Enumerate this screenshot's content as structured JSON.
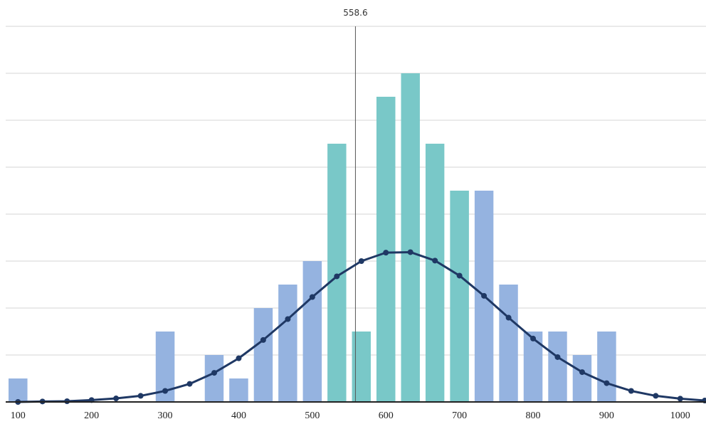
{
  "chart_data": {
    "type": "histogram",
    "bins": [
      83.3,
      116.7,
      150,
      183.3,
      216.7,
      250,
      283.3,
      316.7,
      350,
      383.3,
      416.7,
      450,
      483.3,
      516.7,
      550,
      583.3,
      616.7,
      650,
      683.3,
      716.7,
      750,
      783.3,
      816.7,
      850,
      883.3,
      916.7
    ],
    "values": [
      1,
      0,
      0,
      0,
      0,
      0,
      3,
      0,
      2,
      1,
      4,
      5,
      6,
      11,
      3,
      13,
      14,
      11,
      9,
      9,
      5,
      3,
      3,
      2,
      3
    ],
    "colors": [
      "#95b3e0",
      "#95b3e0",
      "#95b3e0",
      "#95b3e0",
      "#95b3e0",
      "#95b3e0",
      "#95b3e0",
      "#95b3e0",
      "#95b3e0",
      "#95b3e0",
      "#95b3e0",
      "#95b3e0",
      "#95b3e0",
      "#79c8c8",
      "#79c8c8",
      "#79c8c8",
      "#79c8c8",
      "#79c8c8",
      "#79c8c8",
      "#95b3e0",
      "#95b3e0",
      "#95b3e0",
      "#95b3e0",
      "#95b3e0",
      "#95b3e0"
    ],
    "curve": {
      "color": "#1f3864",
      "x": [
        100,
        133.3,
        166.7,
        200,
        233.3,
        266.7,
        300,
        333.3,
        366.7,
        400,
        433.3,
        466.7,
        500,
        533.3,
        566.7,
        600,
        633.3,
        666.7,
        700,
        733.3,
        766.7,
        800,
        833.3,
        866.7,
        900,
        933.3,
        966.7,
        1000,
        1033.3
      ],
      "values": [
        0,
        0.02,
        0.03,
        0.08,
        0.15,
        0.26,
        0.47,
        0.77,
        1.24,
        1.86,
        2.64,
        3.53,
        4.47,
        5.35,
        6.0,
        6.36,
        6.38,
        6.02,
        5.38,
        4.52,
        3.59,
        2.7,
        1.91,
        1.27,
        0.8,
        0.47,
        0.26,
        0.14,
        0.06
      ]
    },
    "mean_line": 558.6,
    "xlim": [
      83.3,
      1035
    ],
    "xticks": [
      100,
      200,
      300,
      400,
      500,
      600,
      700,
      800,
      900,
      1000
    ],
    "ylim": [
      0,
      16
    ],
    "yticks": [
      0,
      2,
      4,
      6,
      8,
      10,
      12,
      14,
      16
    ],
    "grid": true
  }
}
